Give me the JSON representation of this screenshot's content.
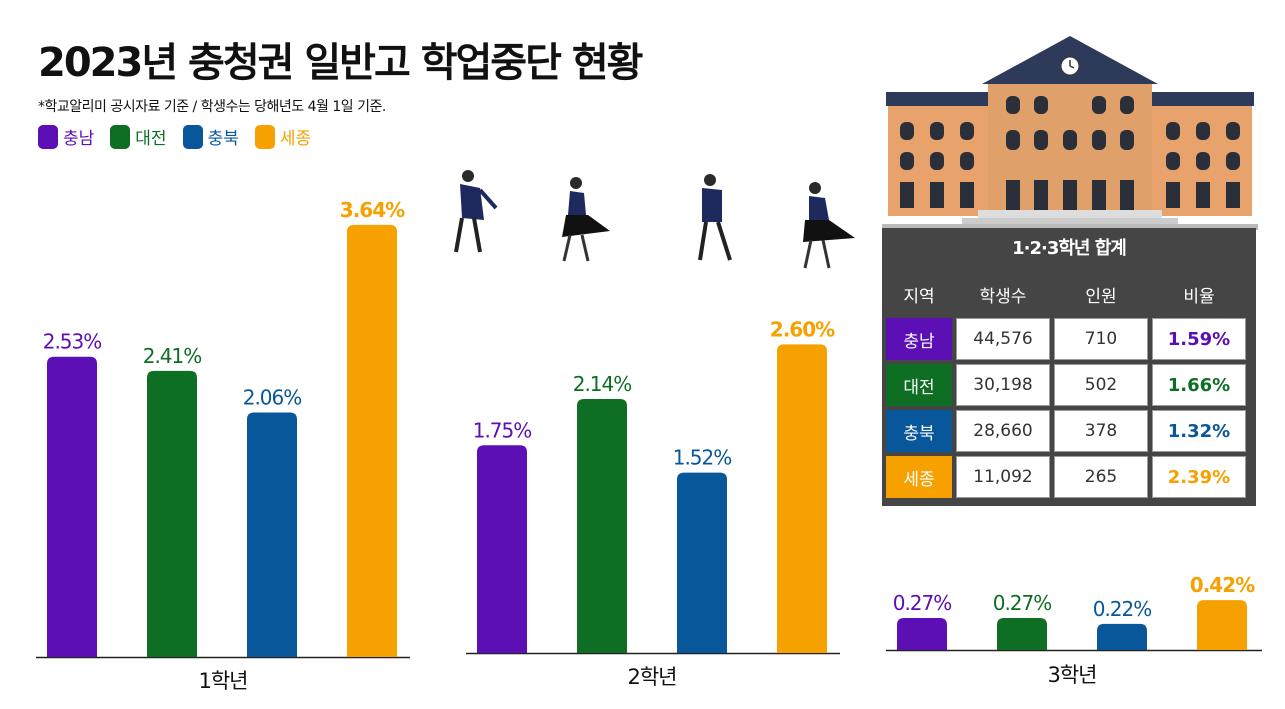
{
  "title": "2023년 충청권 일반고 학업중단 현황",
  "subtitle": "*학교알리미 공시자료 기준 / 학생수는 당해년도 4월 1일 기준.",
  "legend": [
    {
      "label": "충남",
      "color": "#5b0fb5"
    },
    {
      "label": "대전",
      "color": "#0e6e24"
    },
    {
      "label": "충북",
      "color": "#08579a"
    },
    {
      "label": "세종",
      "color": "#f7a100"
    }
  ],
  "table": {
    "title": "1·2·3학년 합계",
    "headers": [
      "지역",
      "학생수",
      "인원",
      "비율"
    ],
    "rows": [
      {
        "region": "충남",
        "students": "44,576",
        "count": "710",
        "rate": "1.59%",
        "color": "#5b0fb5"
      },
      {
        "region": "대전",
        "students": "30,198",
        "count": "502",
        "rate": "1.66%",
        "color": "#0e6e24"
      },
      {
        "region": "충북",
        "students": "28,660",
        "count": "378",
        "rate": "1.32%",
        "color": "#08579a"
      },
      {
        "region": "세종",
        "students": "11,092",
        "count": "265",
        "rate": "2.39%",
        "color": "#f7a100"
      }
    ]
  },
  "chart_data": [
    {
      "type": "bar",
      "xlabel": "1학년",
      "categories": [
        "충남",
        "대전",
        "충북",
        "세종"
      ],
      "values": [
        2.53,
        2.41,
        2.06,
        3.64
      ],
      "labels": [
        "2.53%",
        "2.41%",
        "2.06%",
        "3.64%"
      ]
    },
    {
      "type": "bar",
      "xlabel": "2학년",
      "categories": [
        "충남",
        "대전",
        "충북",
        "세종"
      ],
      "values": [
        1.75,
        2.14,
        1.52,
        2.6
      ],
      "labels": [
        "1.75%",
        "2.14%",
        "1.52%",
        "2.60%"
      ]
    },
    {
      "type": "bar",
      "xlabel": "3학년",
      "categories": [
        "충남",
        "대전",
        "충북",
        "세종"
      ],
      "values": [
        0.27,
        0.27,
        0.22,
        0.42
      ],
      "labels": [
        "0.27%",
        "0.27%",
        "0.22%",
        "0.42%"
      ]
    }
  ]
}
